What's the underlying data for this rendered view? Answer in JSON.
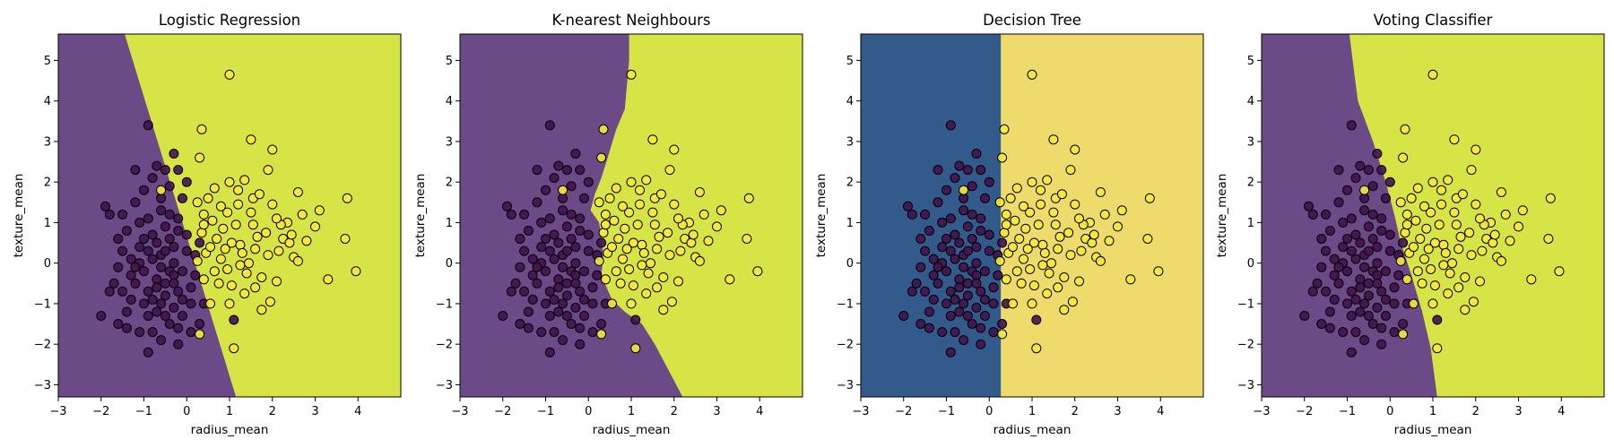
{
  "figure": {
    "colors": {
      "lr_neg": "#6B4A87",
      "lr_pos": "#D7E446",
      "dt_neg": "#325A8A",
      "dt_pos": "#EFDB6B",
      "pt_neg": "#43124F",
      "pt_pos": "#F7E93A",
      "edge": "#000000"
    },
    "xlabel": "radius_mean",
    "ylabel": "texture_mean",
    "xlim": [
      -3,
      5
    ],
    "ylim": [
      -3.3,
      5.65
    ],
    "xticks": [
      -3,
      -2,
      -1,
      0,
      1,
      2,
      3,
      4
    ],
    "yticks": [
      -3,
      -2,
      -1,
      0,
      1,
      2,
      3,
      4,
      5
    ]
  },
  "chart_data": [
    {
      "type": "scatter",
      "title": "Logistic Regression",
      "boundary": {
        "kind": "line",
        "points": [
          [
            -1.45,
            5.65
          ],
          [
            1.15,
            -3.3
          ]
        ]
      },
      "palette": "viridis-soft"
    },
    {
      "type": "scatter",
      "title": "K-nearest Neighbours",
      "boundary": {
        "kind": "curve",
        "points": [
          [
            0.95,
            5.65
          ],
          [
            0.95,
            5.0
          ],
          [
            0.9,
            4.4
          ],
          [
            0.85,
            3.8
          ],
          [
            0.65,
            3.3
          ],
          [
            0.45,
            2.6
          ],
          [
            0.3,
            2.1
          ],
          [
            0.15,
            1.7
          ],
          [
            0.05,
            1.3
          ],
          [
            0.25,
            1.0
          ],
          [
            0.3,
            0.6
          ],
          [
            0.35,
            0.2
          ],
          [
            0.3,
            -0.3
          ],
          [
            0.55,
            -0.9
          ],
          [
            0.85,
            -1.2
          ],
          [
            1.25,
            -1.5
          ],
          [
            1.55,
            -2.0
          ],
          [
            1.85,
            -2.6
          ],
          [
            2.2,
            -3.3
          ]
        ]
      },
      "palette": "viridis-soft"
    },
    {
      "type": "scatter",
      "title": "Decision Tree",
      "boundary": {
        "kind": "vertical",
        "x": 0.27
      },
      "palette": "cividis"
    },
    {
      "type": "scatter",
      "title": "Voting Classifier",
      "boundary": {
        "kind": "curve",
        "points": [
          [
            -0.95,
            5.65
          ],
          [
            -0.85,
            4.8
          ],
          [
            -0.75,
            4.0
          ],
          [
            -0.4,
            3.0
          ],
          [
            -0.1,
            2.0
          ],
          [
            0.1,
            1.2
          ],
          [
            0.25,
            0.5
          ],
          [
            0.5,
            -0.3
          ],
          [
            0.75,
            -1.2
          ],
          [
            0.95,
            -2.1
          ],
          [
            1.1,
            -3.3
          ]
        ]
      },
      "palette": "viridis-soft"
    }
  ],
  "points": {
    "class0": [
      [
        -0.4,
        -0.2
      ],
      [
        -0.8,
        0.1
      ],
      [
        -1.2,
        -0.5
      ],
      [
        -0.6,
        -1.0
      ],
      [
        -0.3,
        0.4
      ],
      [
        -1.5,
        0.3
      ],
      [
        -0.9,
        -1.3
      ],
      [
        -0.2,
        -0.7
      ],
      [
        -0.5,
        0.9
      ],
      [
        -1.0,
        0.6
      ],
      [
        -0.7,
        -0.4
      ],
      [
        -1.3,
        -0.9
      ],
      [
        -0.1,
        -0.2
      ],
      [
        -0.6,
        1.3
      ],
      [
        -1.1,
        1.0
      ],
      [
        -0.4,
        -1.5
      ],
      [
        -0.9,
        -0.7
      ],
      [
        -0.3,
        -1.1
      ],
      [
        -1.6,
        -0.1
      ],
      [
        -0.8,
        -1.7
      ],
      [
        -0.2,
        0.8
      ],
      [
        -0.5,
        -0.5
      ],
      [
        -1.4,
        0.8
      ],
      [
        -0.7,
        0.5
      ],
      [
        -0.1,
        -1.3
      ],
      [
        -1.2,
        1.5
      ],
      [
        -0.6,
        -0.1
      ],
      [
        -0.3,
        -0.3
      ],
      [
        -1.0,
        -0.2
      ],
      [
        -0.4,
        1.2
      ],
      [
        -0.8,
        2.1
      ],
      [
        -0.5,
        2.3
      ],
      [
        -0.9,
        3.4
      ],
      [
        -1.2,
        2.3
      ],
      [
        -0.3,
        2.7
      ],
      [
        -1.9,
        1.4
      ],
      [
        -1.8,
        1.2
      ],
      [
        -2.0,
        -1.3
      ],
      [
        -1.6,
        -1.5
      ],
      [
        -0.9,
        -2.2
      ],
      [
        -0.6,
        -1.9
      ],
      [
        -0.2,
        -2.0
      ],
      [
        0.3,
        -1.5
      ],
      [
        0.4,
        -1.0
      ],
      [
        0.1,
        -0.6
      ],
      [
        0.2,
        0.2
      ],
      [
        0.0,
        0.7
      ],
      [
        -0.1,
        1.6
      ],
      [
        0.1,
        -1.7
      ],
      [
        1.1,
        -1.4
      ],
      [
        -1.1,
        0.0
      ],
      [
        -1.3,
        -0.3
      ],
      [
        -1.5,
        -0.7
      ],
      [
        -1.7,
        -0.5
      ],
      [
        -1.4,
        -1.2
      ],
      [
        -0.7,
        -1.2
      ],
      [
        -0.5,
        -1.3
      ],
      [
        -0.2,
        -1.6
      ],
      [
        -0.8,
        -0.9
      ],
      [
        -1.0,
        -1.0
      ],
      [
        -0.6,
        0.2
      ],
      [
        -0.4,
        0.6
      ],
      [
        -0.9,
        0.3
      ],
      [
        -1.1,
        0.4
      ],
      [
        -0.3,
        0.0
      ],
      [
        -0.5,
        -0.8
      ],
      [
        -0.7,
        -0.6
      ],
      [
        -1.2,
        -0.1
      ],
      [
        0.0,
        0.3
      ],
      [
        0.2,
        -0.3
      ],
      [
        -0.2,
        1.1
      ],
      [
        -0.6,
        1.6
      ],
      [
        -0.4,
        1.9
      ],
      [
        -1.3,
        0.1
      ],
      [
        -1.8,
        -0.7
      ],
      [
        -1.4,
        -1.6
      ],
      [
        -1.1,
        -1.7
      ],
      [
        -0.3,
        -0.5
      ],
      [
        -0.5,
        0.3
      ],
      [
        -0.8,
        0.7
      ],
      [
        0.1,
        -1.0
      ],
      [
        -0.1,
        -0.9
      ],
      [
        -0.9,
        1.1
      ],
      [
        -1.0,
        1.8
      ],
      [
        -0.7,
        2.4
      ],
      [
        -0.2,
        2.3
      ],
      [
        0.0,
        2.0
      ],
      [
        -1.5,
        1.2
      ],
      [
        -1.6,
        0.6
      ],
      [
        0.3,
        0.5
      ]
    ],
    "class1": [
      [
        1.0,
        4.65
      ],
      [
        1.5,
        3.05
      ],
      [
        0.35,
        3.3
      ],
      [
        2.0,
        2.8
      ],
      [
        0.3,
        2.6
      ],
      [
        0.65,
        1.85
      ],
      [
        1.35,
        2.05
      ],
      [
        1.55,
        1.6
      ],
      [
        1.9,
        2.3
      ],
      [
        2.6,
        1.75
      ],
      [
        3.75,
        1.6
      ],
      [
        3.1,
        1.3
      ],
      [
        2.35,
        1.0
      ],
      [
        1.25,
        0.45
      ],
      [
        0.8,
        0.1
      ],
      [
        1.05,
        0.5
      ],
      [
        1.6,
        0.35
      ],
      [
        1.9,
        0.2
      ],
      [
        2.25,
        0.6
      ],
      [
        2.8,
        0.55
      ],
      [
        3.7,
        0.6
      ],
      [
        3.95,
        -0.2
      ],
      [
        3.3,
        -0.4
      ],
      [
        2.5,
        0.15
      ],
      [
        2.1,
        -0.45
      ],
      [
        1.95,
        -0.95
      ],
      [
        1.75,
        -1.15
      ],
      [
        1.0,
        -1.0
      ],
      [
        0.75,
        -0.5
      ],
      [
        0.55,
        -1.0
      ],
      [
        0.45,
        0.25
      ],
      [
        0.35,
        0.75
      ],
      [
        0.6,
        1.05
      ],
      [
        0.95,
        1.25
      ],
      [
        1.2,
        1.45
      ],
      [
        1.7,
        1.7
      ],
      [
        2.0,
        1.45
      ],
      [
        2.2,
        0.95
      ],
      [
        1.55,
        0.95
      ],
      [
        1.3,
        0.25
      ],
      [
        1.4,
        -0.25
      ],
      [
        0.95,
        -0.15
      ],
      [
        0.7,
        0.6
      ],
      [
        0.5,
        1.6
      ],
      [
        1.0,
        2.0
      ],
      [
        0.3,
        -1.75
      ],
      [
        1.1,
        -2.1
      ],
      [
        1.65,
        0.65
      ],
      [
        2.6,
        0.05
      ],
      [
        3.0,
        0.9
      ],
      [
        0.25,
        0.05
      ],
      [
        0.4,
        -0.4
      ],
      [
        0.85,
        0.85
      ],
      [
        1.15,
        0.95
      ],
      [
        1.85,
        0.75
      ],
      [
        2.4,
        0.5
      ],
      [
        2.7,
        1.2
      ],
      [
        1.5,
        1.25
      ],
      [
        0.8,
        1.4
      ],
      [
        0.55,
        0.4
      ],
      [
        0.65,
        -0.2
      ],
      [
        1.05,
        -0.55
      ],
      [
        1.35,
        -0.75
      ],
      [
        1.75,
        -0.35
      ],
      [
        2.15,
        0.3
      ],
      [
        0.9,
        0.35
      ],
      [
        1.6,
        -0.6
      ],
      [
        1.2,
        1.8
      ],
      [
        0.4,
        1.2
      ],
      [
        0.25,
        1.5
      ],
      [
        -0.6,
        1.8
      ],
      [
        0.4,
        0.95
      ],
      [
        1.45,
        0.0
      ],
      [
        2.1,
        1.1
      ],
      [
        2.45,
        0.7
      ],
      [
        1.25,
        -0.05
      ]
    ]
  }
}
